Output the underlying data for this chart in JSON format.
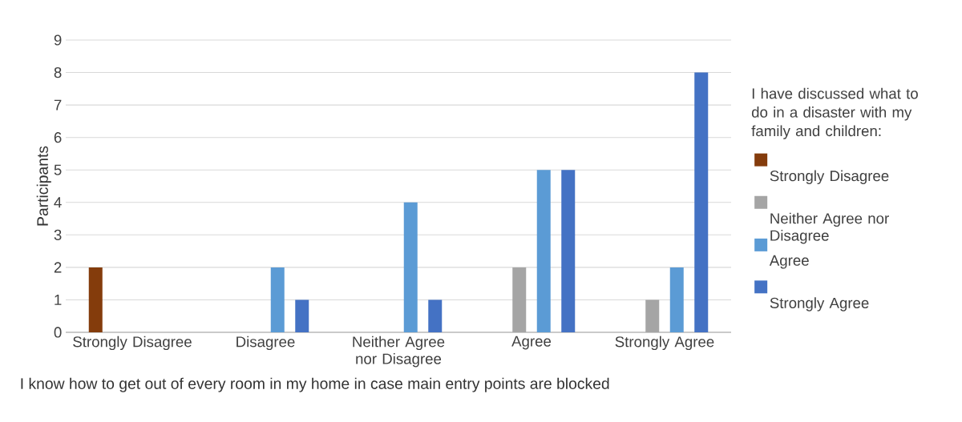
{
  "chart_data": {
    "type": "bar",
    "categories": [
      "Strongly Disagree",
      "Disagree",
      "Neither Agree nor Disagree",
      "Agree",
      "Strongly Agree"
    ],
    "series": [
      {
        "name": "Strongly Disagree",
        "color": "#843c0c",
        "values": [
          2,
          0,
          0,
          0,
          0
        ]
      },
      {
        "name": "Neither Agree nor Disagree",
        "color": "#a5a5a5",
        "values": [
          0,
          0,
          0,
          2,
          1
        ]
      },
      {
        "name": "Agree",
        "color": "#5b9bd5",
        "values": [
          0,
          2,
          4,
          5,
          2
        ]
      },
      {
        "name": "Strongly Agree",
        "color": "#4472c4",
        "values": [
          0,
          1,
          1,
          5,
          8
        ]
      }
    ],
    "xlabel": "I know how to get out of every room in my home in case main entry points are blocked",
    "ylabel": "Participants",
    "legend_title": "I have discussed what to do in a disaster with my family and children:",
    "ylim": [
      0,
      9
    ],
    "yticks": [
      0,
      1,
      2,
      3,
      4,
      5,
      6,
      7,
      8,
      9
    ],
    "grid": "y",
    "legend": "right"
  }
}
